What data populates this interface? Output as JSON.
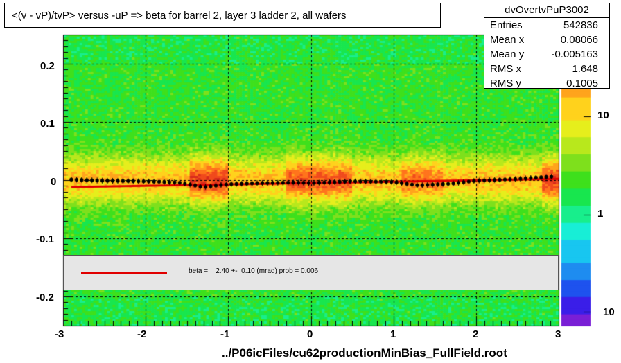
{
  "chart_data": {
    "type": "heatmap",
    "title": "<(v - vP)/tvP> versus  -uP => beta for barrel 2, layer 3 ladder 2, all wafers",
    "xlabel": "../P06icFiles/cu62productionMinBias_FullField.root",
    "ylabel": "",
    "xlim": [
      -3,
      3
    ],
    "ylim": [
      -0.25,
      0.25
    ],
    "x_ticks": [
      "-3",
      "-2",
      "-1",
      "0",
      "1",
      "2",
      "3"
    ],
    "y_ticks": [
      "0.2",
      "0.1",
      "0",
      "-0.1",
      "-0.2"
    ],
    "z_ticks": [
      "10",
      "1",
      "10"
    ],
    "grid": true,
    "stats": {
      "name": "dvOvertvPuP3002",
      "rows": [
        {
          "label": "Entries",
          "value": "542836"
        },
        {
          "label": "Mean x",
          "value": "0.08066"
        },
        {
          "label": "Mean y",
          "value": "-0.005163"
        },
        {
          "label": "RMS x",
          "value": "1.648"
        },
        {
          "label": "RMS y",
          "value": "0.1005"
        }
      ]
    },
    "fit": {
      "text": "beta =    2.40 +-  0.10 (mrad) prob = 0.006",
      "x": [
        -2.9,
        3.0
      ],
      "y": [
        -0.012,
        0.002
      ],
      "color": "#e00000"
    },
    "profile": {
      "x": [
        -2.9,
        -2.5,
        -2.0,
        -1.6,
        -1.3,
        -1.0,
        -0.6,
        -0.2,
        0.0,
        0.5,
        1.0,
        1.3,
        1.7,
        2.0,
        2.5,
        2.9
      ],
      "y": [
        0.001,
        -0.001,
        -0.002,
        -0.004,
        -0.012,
        -0.007,
        -0.005,
        -0.004,
        -0.005,
        -0.002,
        -0.003,
        -0.009,
        -0.006,
        -0.001,
        0.002,
        0.006
      ]
    }
  }
}
